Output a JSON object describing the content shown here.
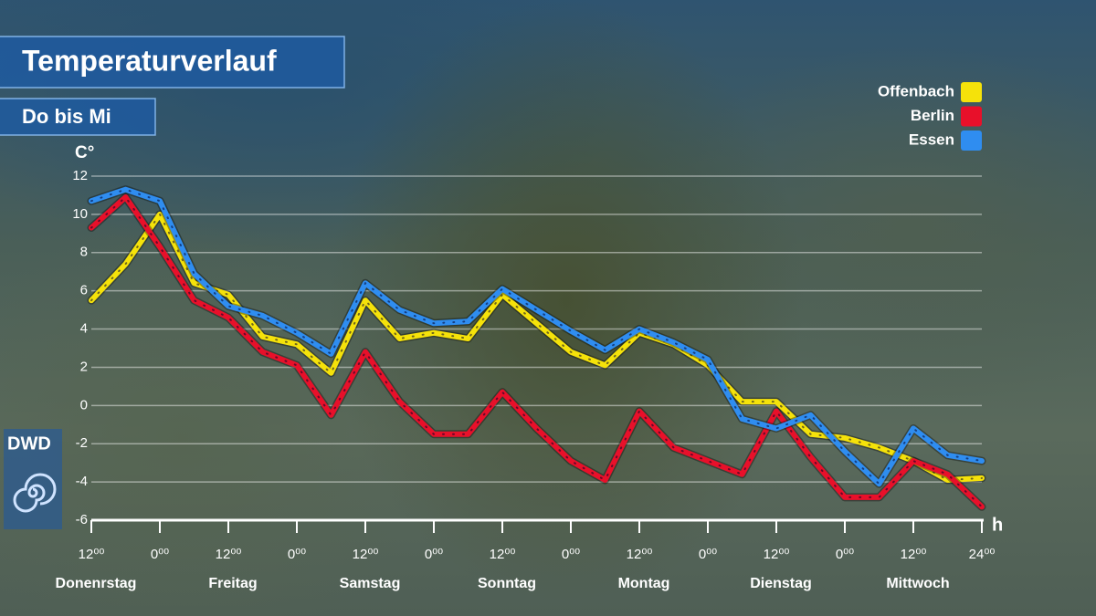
{
  "chart_data": {
    "type": "line",
    "title": "Temperaturverlauf",
    "subtitle": "Do bis Mi",
    "y_label": "C°",
    "x_label": "h",
    "logo": "DWD",
    "x": [
      0,
      6,
      12,
      18,
      24,
      30,
      36,
      42,
      48,
      54,
      60,
      66,
      72,
      78,
      84,
      90,
      96,
      102,
      108,
      114,
      120,
      126,
      132,
      138,
      144,
      150,
      156
    ],
    "xlim": [
      0,
      156
    ],
    "xticks": [
      {
        "value": 0,
        "label": "12⁰⁰"
      },
      {
        "value": 12,
        "label": "0⁰⁰"
      },
      {
        "value": 24,
        "label": "12⁰⁰"
      },
      {
        "value": 36,
        "label": "0⁰⁰"
      },
      {
        "value": 48,
        "label": "12⁰⁰"
      },
      {
        "value": 60,
        "label": "0⁰⁰"
      },
      {
        "value": 72,
        "label": "12⁰⁰"
      },
      {
        "value": 84,
        "label": "0⁰⁰"
      },
      {
        "value": 96,
        "label": "12⁰⁰"
      },
      {
        "value": 108,
        "label": "0⁰⁰"
      },
      {
        "value": 120,
        "label": "12⁰⁰"
      },
      {
        "value": 132,
        "label": "0⁰⁰"
      },
      {
        "value": 144,
        "label": "12⁰⁰"
      },
      {
        "value": 156,
        "label": "24⁰⁰"
      }
    ],
    "day_labels": [
      {
        "value": 0,
        "label": "Donenrstag"
      },
      {
        "value": 24,
        "label": "Freitag"
      },
      {
        "value": 48,
        "label": "Samstag"
      },
      {
        "value": 72,
        "label": "Sonntag"
      },
      {
        "value": 96,
        "label": "Montag"
      },
      {
        "value": 120,
        "label": "Dienstag"
      },
      {
        "value": 144,
        "label": "Mittwoch"
      }
    ],
    "ylim": [
      -6,
      12
    ],
    "yticks": [
      -6,
      -4,
      -2,
      0,
      2,
      4,
      6,
      8,
      10,
      12
    ],
    "grid": true,
    "legend": "top-right",
    "series": [
      {
        "name": "Offenbach",
        "color": "#f5e20a",
        "values": [
          5.5,
          7.4,
          10.0,
          6.4,
          5.8,
          3.6,
          3.2,
          1.7,
          5.5,
          3.5,
          3.8,
          3.5,
          5.8,
          4.3,
          2.8,
          2.1,
          3.8,
          3.2,
          2.1,
          0.2,
          0.2,
          -1.5,
          -1.7,
          -2.2,
          -2.9,
          -3.9,
          -3.8
        ]
      },
      {
        "name": "Berlin",
        "color": "#e8102a",
        "values": [
          9.3,
          10.9,
          8.3,
          5.5,
          4.6,
          2.8,
          2.1,
          -0.5,
          2.8,
          0.2,
          -1.5,
          -1.5,
          0.7,
          -1.2,
          -2.9,
          -3.9,
          -0.3,
          -2.2,
          -2.9,
          -3.6,
          -0.3,
          -2.7,
          -4.8,
          -4.8,
          -2.9,
          -3.6,
          -5.3
        ]
      },
      {
        "name": "Essen",
        "color": "#2f8df0",
        "values": [
          10.7,
          11.3,
          10.7,
          6.9,
          5.2,
          4.7,
          3.8,
          2.7,
          6.4,
          5.0,
          4.3,
          4.4,
          6.1,
          5.0,
          3.9,
          2.9,
          4.0,
          3.3,
          2.4,
          -0.7,
          -1.2,
          -0.5,
          -2.4,
          -4.1,
          -1.2,
          -2.6,
          -2.9
        ]
      }
    ]
  }
}
